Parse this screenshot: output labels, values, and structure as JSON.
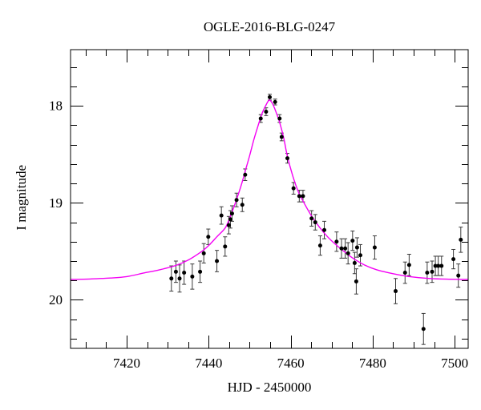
{
  "chart_data": {
    "type": "scatter",
    "title": "OGLE-2016-BLG-0247",
    "xlabel": "HJD - 2450000",
    "ylabel": "I magnitude",
    "xlim": [
      7406.3,
      7503.3
    ],
    "ylim_mag": [
      17.42,
      20.5
    ],
    "y_axis_inverted": true,
    "grid": false,
    "legend": null,
    "x_major_ticks": [
      7420,
      7440,
      7460,
      7480,
      7500
    ],
    "x_minor_ticks": [
      7410,
      7415,
      7425,
      7430,
      7435,
      7445,
      7450,
      7455,
      7465,
      7470,
      7475,
      7485,
      7490,
      7495
    ],
    "y_major_ticks": [
      18,
      19,
      20
    ],
    "y_minor_ticks": [
      17.6,
      17.8,
      18.2,
      18.4,
      18.6,
      18.8,
      19.2,
      19.4,
      19.6,
      19.8,
      20.2,
      20.4
    ],
    "colors": {
      "curve": "#f400f4",
      "points": "#000000",
      "error_bars": "#3a3a3a",
      "frame": "#000000"
    },
    "points": [
      [
        7430.9,
        19.78,
        0.13
      ],
      [
        7432.0,
        19.71,
        0.11
      ],
      [
        7432.9,
        19.78,
        0.14
      ],
      [
        7434.0,
        19.72,
        0.12
      ],
      [
        7436.0,
        19.76,
        0.13
      ],
      [
        7437.9,
        19.71,
        0.11
      ],
      [
        7438.8,
        19.52,
        0.1
      ],
      [
        7439.9,
        19.35,
        0.08
      ],
      [
        7442.0,
        19.6,
        0.11
      ],
      [
        7443.1,
        19.13,
        0.09
      ],
      [
        7444.0,
        19.45,
        0.1
      ],
      [
        7444.9,
        19.23,
        0.09
      ],
      [
        7445.3,
        19.17,
        0.09
      ],
      [
        7445.7,
        19.11,
        0.08
      ],
      [
        7446.8,
        18.97,
        0.07
      ],
      [
        7448.2,
        19.02,
        0.07
      ],
      [
        7448.9,
        18.71,
        0.06
      ],
      [
        7452.7,
        18.13,
        0.04
      ],
      [
        7454.0,
        18.06,
        0.04
      ],
      [
        7454.9,
        17.91,
        0.03
      ],
      [
        7456.2,
        17.96,
        0.03
      ],
      [
        7457.3,
        18.13,
        0.04
      ],
      [
        7457.8,
        18.32,
        0.04
      ],
      [
        7459.2,
        18.54,
        0.05
      ],
      [
        7460.7,
        18.85,
        0.06
      ],
      [
        7462.1,
        18.93,
        0.06
      ],
      [
        7463.0,
        18.93,
        0.06
      ],
      [
        7465.1,
        19.16,
        0.08
      ],
      [
        7466.0,
        19.2,
        0.08
      ],
      [
        7467.2,
        19.44,
        0.1
      ],
      [
        7468.2,
        19.28,
        0.09
      ],
      [
        7471.2,
        19.4,
        0.1
      ],
      [
        7472.4,
        19.47,
        0.1
      ],
      [
        7473.3,
        19.47,
        0.1
      ],
      [
        7474.0,
        19.52,
        0.11
      ],
      [
        7475.1,
        19.39,
        0.1
      ],
      [
        7475.6,
        19.62,
        0.11
      ],
      [
        7476.0,
        19.81,
        0.13
      ],
      [
        7476.2,
        19.46,
        0.1
      ],
      [
        7477.0,
        19.54,
        0.11
      ],
      [
        7480.5,
        19.46,
        0.12
      ],
      [
        7485.6,
        19.91,
        0.13
      ],
      [
        7487.9,
        19.72,
        0.11
      ],
      [
        7488.9,
        19.64,
        0.11
      ],
      [
        7492.4,
        20.3,
        0.16
      ],
      [
        7493.3,
        19.72,
        0.11
      ],
      [
        7494.5,
        19.71,
        0.11
      ],
      [
        7495.3,
        19.65,
        0.1
      ],
      [
        7496.0,
        19.65,
        0.1
      ],
      [
        7496.8,
        19.65,
        0.1
      ],
      [
        7499.7,
        19.58,
        0.1
      ],
      [
        7500.9,
        19.75,
        0.12
      ],
      [
        7501.5,
        19.38,
        0.13
      ]
    ],
    "model_curve": [
      [
        7406.3,
        19.79
      ],
      [
        7411,
        19.785
      ],
      [
        7416,
        19.775
      ],
      [
        7420,
        19.76
      ],
      [
        7424,
        19.725
      ],
      [
        7428,
        19.69
      ],
      [
        7432,
        19.645
      ],
      [
        7435,
        19.59
      ],
      [
        7438,
        19.51
      ],
      [
        7440,
        19.44
      ],
      [
        7442,
        19.35
      ],
      [
        7444,
        19.26
      ],
      [
        7445,
        19.17
      ],
      [
        7446,
        19.06
      ],
      [
        7447,
        18.94
      ],
      [
        7448,
        18.81
      ],
      [
        7449,
        18.66
      ],
      [
        7450,
        18.51
      ],
      [
        7451,
        18.35
      ],
      [
        7452,
        18.21
      ],
      [
        7453,
        18.08
      ],
      [
        7454,
        17.99
      ],
      [
        7454.8,
        17.94
      ],
      [
        7455.6,
        17.98
      ],
      [
        7456.3,
        18.05
      ],
      [
        7457.3,
        18.17
      ],
      [
        7458.3,
        18.33
      ],
      [
        7459.2,
        18.52
      ],
      [
        7460.5,
        18.72
      ],
      [
        7462,
        18.9
      ],
      [
        7463,
        18.98
      ],
      [
        7465,
        19.13
      ],
      [
        7467,
        19.25
      ],
      [
        7469,
        19.35
      ],
      [
        7471,
        19.43
      ],
      [
        7473,
        19.5
      ],
      [
        7475,
        19.565
      ],
      [
        7478,
        19.64
      ],
      [
        7481,
        19.69
      ],
      [
        7485,
        19.73
      ],
      [
        7489,
        19.76
      ],
      [
        7494,
        19.78
      ],
      [
        7499,
        19.787
      ],
      [
        7503.3,
        19.79
      ]
    ]
  }
}
